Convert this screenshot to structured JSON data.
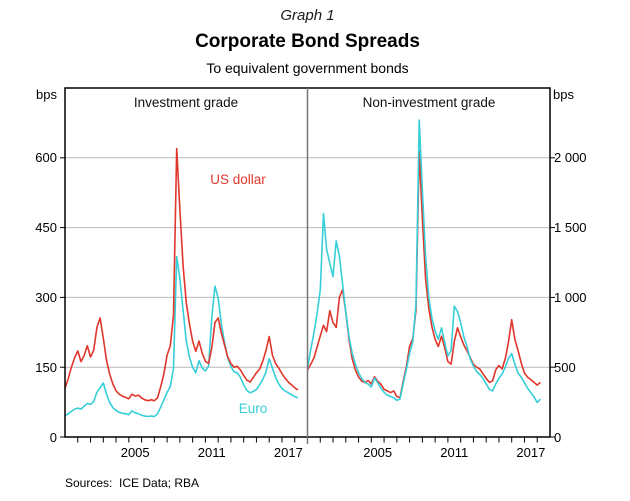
{
  "chart_data": {
    "type": "line",
    "graph_label": "Graph 1",
    "title": "Corporate Bond Spreads",
    "subtitle": "To equivalent government bonds",
    "source_note": "Sources:  ICE Data; RBA",
    "legend_position": "inline-annotations",
    "grid": "horizontal",
    "x": {
      "domain": [
        2000,
        2019
      ],
      "data_start": 2000.0,
      "data_step_years": 0.25,
      "year_tick_interval": 1,
      "label_years": [
        2005,
        2011,
        2017
      ]
    },
    "left_axis": {
      "unit": "bps",
      "range": [
        0,
        750
      ],
      "ticks": [
        0,
        150,
        300,
        450,
        600
      ],
      "tick_labels": [
        "0",
        "150",
        "300",
        "450",
        "600"
      ]
    },
    "right_axis": {
      "unit": "bps",
      "range": [
        0,
        2500
      ],
      "ticks": [
        0,
        500,
        1000,
        1500,
        2000
      ],
      "tick_labels": [
        "0",
        "500",
        "1 000",
        "1 500",
        "2 000"
      ]
    },
    "colors": {
      "us_dollar": "#e0362c",
      "euro": "#36ced8",
      "grid": "#b9b9b9",
      "frame": "#000000",
      "divider": "#777777"
    },
    "panels": [
      {
        "title": "Investment grade",
        "axis": "left",
        "series": [
          {
            "name": "US dollar",
            "color_key": "us_dollar",
            "values": [
              105,
              125,
              150,
              170,
              185,
              162,
              175,
              196,
              172,
              186,
              235,
              256,
              212,
              165,
              135,
              114,
              99,
              92,
              88,
              85,
              82,
              92,
              88,
              90,
              84,
              80,
              78,
              80,
              78,
              84,
              108,
              136,
              176,
              196,
              262,
              620,
              488,
              368,
              288,
              244,
              206,
              184,
              206,
              180,
              163,
              158,
              192,
              246,
              256,
              224,
              198,
              172,
              158,
              150,
              152,
              144,
              132,
              122,
              118,
              128,
              138,
              146,
              163,
              186,
              216,
              176,
              158,
              148,
              136,
              126,
              118,
              112,
              106,
              101
            ]
          },
          {
            "name": "Euro",
            "color_key": "euro",
            "values": [
              45,
              50,
              55,
              60,
              62,
              60,
              66,
              72,
              70,
              76,
              96,
              106,
              116,
              92,
              74,
              63,
              57,
              53,
              51,
              50,
              48,
              56,
              52,
              50,
              47,
              45,
              44,
              45,
              44,
              50,
              64,
              80,
              96,
              108,
              148,
              388,
              340,
              272,
              206,
              172,
              150,
              138,
              164,
              148,
              142,
              152,
              258,
              324,
              298,
              244,
              204,
              170,
              152,
              140,
              138,
              128,
              112,
              100,
              95,
              98,
              102,
              112,
              124,
              140,
              168,
              148,
              128,
              114,
              104,
              99,
              95,
              91,
              87,
              84
            ]
          }
        ]
      },
      {
        "title": "Non-investment grade",
        "axis": "right",
        "series": [
          {
            "name": "US dollar",
            "color_key": "us_dollar",
            "values": [
              480,
              520,
              565,
              645,
              725,
              800,
              755,
              905,
              820,
              785,
              1000,
              1055,
              895,
              700,
              560,
              480,
              430,
              400,
              390,
              405,
              380,
              432,
              400,
              378,
              342,
              330,
              318,
              330,
              290,
              282,
              400,
              505,
              650,
              705,
              910,
              2050,
              1560,
              1130,
              920,
              790,
              700,
              648,
              722,
              640,
              540,
              522,
              685,
              782,
              718,
              660,
              618,
              568,
              520,
              500,
              488,
              452,
              420,
              392,
              402,
              482,
              512,
              488,
              562,
              682,
              840,
              698,
              618,
              528,
              458,
              428,
              410,
              392,
              372,
              392
            ]
          },
          {
            "name": "Euro",
            "color_key": "euro",
            "values": [
              490,
              625,
              745,
              885,
              1055,
              1600,
              1345,
              1245,
              1150,
              1405,
              1295,
              1095,
              895,
              720,
              600,
              520,
              460,
              420,
              392,
              380,
              358,
              422,
              388,
              350,
              320,
              300,
              290,
              282,
              262,
              272,
              382,
              485,
              600,
              685,
              955,
              2270,
              1760,
              1290,
              1000,
              850,
              760,
              700,
              782,
              678,
              580,
              622,
              938,
              898,
              818,
              718,
              648,
              558,
              508,
              470,
              448,
              420,
              380,
              342,
              330,
              382,
              420,
              452,
              502,
              562,
              598,
              520,
              458,
              428,
              388,
              348,
              318,
              288,
              248,
              272
            ]
          }
        ]
      }
    ]
  }
}
